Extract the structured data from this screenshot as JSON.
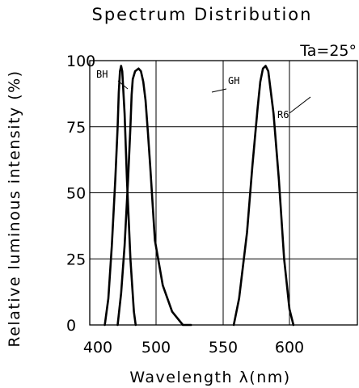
{
  "chart_data": {
    "type": "line",
    "title": "Spectrum Distribution",
    "annotation": "Ta=25°",
    "xlabel": "Wavelength λ(nm)",
    "ylabel": "Relative luminous intensity (%)",
    "xlim": [
      400,
      650
    ],
    "ylim": [
      0,
      100
    ],
    "x_ticks": [
      400,
      500,
      550,
      600
    ],
    "x_tick_labels": [
      "400",
      "500",
      "550",
      "600"
    ],
    "y_ticks": [
      0,
      25,
      50,
      75,
      100
    ],
    "y_tick_labels": [
      "0",
      "25",
      "50",
      "75",
      "100"
    ],
    "grid": true,
    "series": [
      {
        "name": "BH",
        "x": [
          412,
          418,
          424,
          430,
          434,
          436,
          438,
          440,
          442,
          446,
          450,
          456,
          462,
          465
        ],
        "y": [
          0,
          10,
          30,
          55,
          75,
          88,
          96,
          98,
          96,
          80,
          55,
          25,
          5,
          0
        ]
      },
      {
        "name": "GH",
        "x": [
          434,
          440,
          446,
          452,
          456,
          458,
          460,
          464,
          470,
          474,
          478,
          482,
          486,
          490,
          494,
          498,
          505,
          512,
          520,
          526
        ],
        "y": [
          0,
          12,
          30,
          55,
          75,
          87,
          93,
          96,
          97,
          96,
          92,
          85,
          73,
          60,
          46,
          32,
          15,
          5,
          0,
          0
        ]
      },
      {
        "name": "R6",
        "x": [
          558,
          562,
          568,
          572,
          576,
          578,
          580,
          582,
          584,
          588,
          592,
          596,
          600,
          603
        ],
        "y": [
          0,
          10,
          35,
          60,
          82,
          92,
          97,
          98,
          96,
          80,
          55,
          25,
          6,
          0
        ]
      }
    ]
  }
}
